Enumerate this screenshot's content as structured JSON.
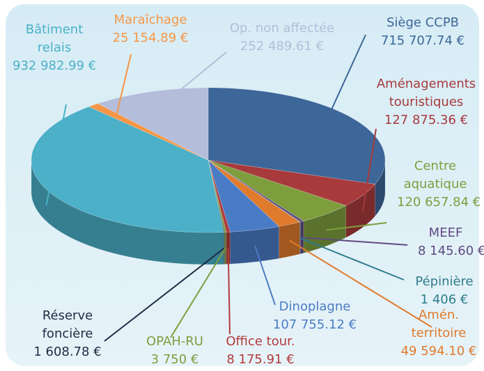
{
  "chart_data": {
    "type": "pie",
    "categories": [
      "Siège CCPB",
      "Aménagements touristiques",
      "Centre aquatique",
      "MEEF",
      "Pépinière",
      "Amén. territoire",
      "Dinoplagne",
      "Office tour.",
      "OPAH-RU",
      "Réserve foncière",
      "Bâtiment relais",
      "Maraîchage",
      "Op. non affectée"
    ],
    "values": [
      715707.74,
      127875.36,
      120657.84,
      8145.6,
      1406,
      49594.1,
      107755.12,
      8175.91,
      3750,
      1608.78,
      932982.99,
      25154.89,
      252489.61
    ],
    "value_labels": [
      "715 707.74 €",
      "127 875.36 €",
      "120 657.84 €",
      "8 145.60 €",
      "1 406 €",
      "49 594.10 €",
      "107 755.12 €",
      "8 175.91 €",
      "3 750 €",
      "1 608.78 €",
      "932 982.99 €",
      "25 154.89 €",
      "252 489.61 €"
    ],
    "colors": [
      "#3d6699",
      "#a83a3c",
      "#7e9e3e",
      "#5e4a80",
      "#2e7d8c",
      "#e07a2c",
      "#4a7cc6",
      "#b23a3c",
      "#7e9e3e",
      "#1f2a44",
      "#4bb0c8",
      "#f79646",
      "#b4bedb"
    ]
  }
}
